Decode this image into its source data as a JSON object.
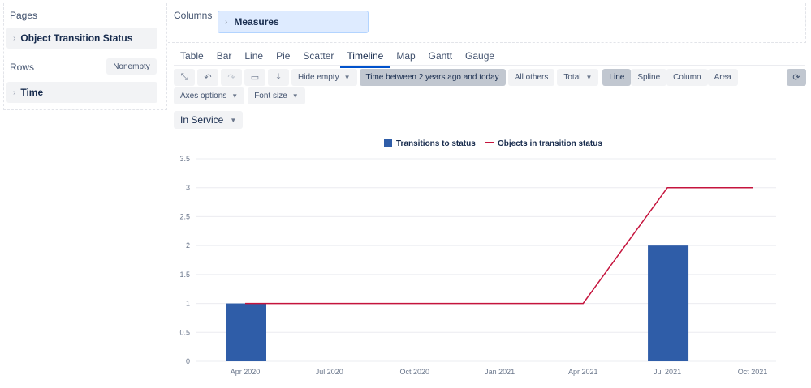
{
  "pages": {
    "title": "Pages",
    "item": "Object Transition Status"
  },
  "rows": {
    "title": "Rows",
    "nonempty_label": "Nonempty",
    "item": "Time"
  },
  "columns": {
    "title": "Columns",
    "item": "Measures"
  },
  "tabs": [
    "Table",
    "Bar",
    "Line",
    "Pie",
    "Scatter",
    "Timeline",
    "Map",
    "Gantt",
    "Gauge"
  ],
  "active_tab": "Timeline",
  "toolbar": {
    "hide_empty": "Hide empty",
    "time_filter": "Time between 2 years ago and today",
    "all_others": "All others",
    "total": "Total",
    "line": "Line",
    "spline": "Spline",
    "column": "Column",
    "area": "Area",
    "axes_options": "Axes options",
    "font_size": "Font size"
  },
  "filter": {
    "value": "In Service"
  },
  "colors": {
    "bar": "#2f5da8",
    "line": "#c5143d",
    "accent": "#0052cc"
  },
  "chart_data": {
    "type": "bar",
    "x": [
      "Apr 2020",
      "Jul 2020",
      "Oct 2020",
      "Jan 2021",
      "Apr 2021",
      "Jul 2021",
      "Oct 2021"
    ],
    "ylim": [
      0,
      3.5
    ],
    "yticks": [
      "0",
      "0.5",
      "1",
      "1.5",
      "2",
      "2.5",
      "3",
      "3.5"
    ],
    "legend_position": "top-center",
    "grid": true,
    "series": [
      {
        "name": "Transitions to status",
        "type": "bar",
        "points": [
          {
            "x": "2020-04-01",
            "y": 1
          },
          {
            "x": "2021-07-01",
            "y": 2
          }
        ]
      },
      {
        "name": "Objects in transition status",
        "type": "line",
        "points": [
          {
            "x": "2020-04-01",
            "y": 1
          },
          {
            "x": "2021-04-01",
            "y": 1
          },
          {
            "x": "2021-07-01",
            "y": 3
          },
          {
            "x": "2021-10-01",
            "y": 3
          }
        ]
      }
    ]
  }
}
